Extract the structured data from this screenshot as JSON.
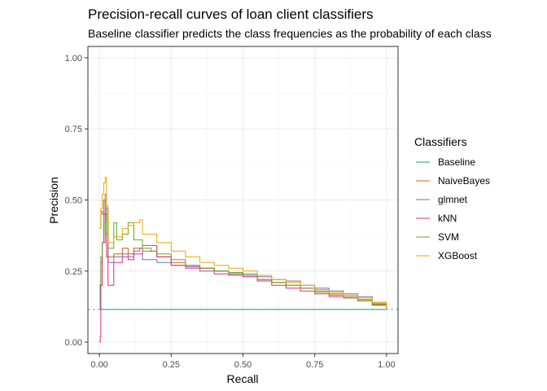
{
  "colors": {
    "Baseline": "#1b9e77",
    "NaiveBayes": "#d95f02",
    "glmnet": "#7570b3",
    "kNN": "#e7298a",
    "SVM": "#66a61e",
    "XGBoost": "#e6ab02",
    "reference_line": "#999999"
  },
  "chart_data": {
    "type": "line",
    "title": "Precision-recall curves of loan client classifiers",
    "subtitle": "Baseline classifier predicts the class frequencies as the probability of each class",
    "xlabel": "Recall",
    "ylabel": "Precision",
    "xlim": [
      -0.04,
      1.04
    ],
    "ylim": [
      -0.04,
      1.04
    ],
    "x_ticks": [
      0.0,
      0.25,
      0.5,
      0.75,
      1.0
    ],
    "x_tick_labels": [
      "0.00",
      "0.25",
      "0.50",
      "0.75",
      "1.00"
    ],
    "y_ticks": [
      0.0,
      0.25,
      0.5,
      0.75,
      1.0
    ],
    "y_tick_labels": [
      "0.00",
      "0.25",
      "0.50",
      "0.75",
      "1.00"
    ],
    "grid": true,
    "reference_line": {
      "y": 0.115,
      "style": "dashed"
    },
    "legend": {
      "title": "Classifiers",
      "placement": "right"
    },
    "series": [
      {
        "name": "Baseline",
        "x": [
          0.0,
          0.003,
          0.01,
          1.0
        ],
        "y": [
          0.2,
          0.115,
          0.115,
          0.115
        ]
      },
      {
        "name": "NaiveBayes",
        "x": [
          0.0,
          0.005,
          0.01,
          0.015,
          0.02,
          0.025,
          0.03,
          0.05,
          0.08,
          0.1,
          0.12,
          0.15,
          0.2,
          0.25,
          0.3,
          0.35,
          0.4,
          0.45,
          0.5,
          0.55,
          0.6,
          0.65,
          0.7,
          0.75,
          0.8,
          0.85,
          0.9,
          0.95,
          1.0
        ],
        "y": [
          0.4,
          0.46,
          0.45,
          0.5,
          0.43,
          0.47,
          0.3,
          0.31,
          0.33,
          0.31,
          0.33,
          0.32,
          0.3,
          0.28,
          0.27,
          0.26,
          0.25,
          0.24,
          0.235,
          0.22,
          0.21,
          0.2,
          0.19,
          0.18,
          0.17,
          0.16,
          0.15,
          0.135,
          0.118
        ]
      },
      {
        "name": "glmnet",
        "x": [
          0.0,
          0.005,
          0.01,
          0.015,
          0.02,
          0.025,
          0.03,
          0.05,
          0.08,
          0.1,
          0.12,
          0.14,
          0.15,
          0.2,
          0.25,
          0.3,
          0.35,
          0.4,
          0.45,
          0.5,
          0.55,
          0.6,
          0.65,
          0.7,
          0.75,
          0.8,
          0.85,
          0.9,
          0.95,
          1.0
        ],
        "y": [
          0.2,
          0.28,
          0.35,
          0.45,
          0.52,
          0.38,
          0.28,
          0.3,
          0.31,
          0.3,
          0.32,
          0.33,
          0.29,
          0.28,
          0.27,
          0.265,
          0.26,
          0.25,
          0.24,
          0.235,
          0.23,
          0.22,
          0.215,
          0.2,
          0.19,
          0.18,
          0.17,
          0.16,
          0.14,
          0.118
        ]
      },
      {
        "name": "kNN",
        "x": [
          0.0,
          0.003,
          0.005,
          0.01,
          0.02,
          0.025,
          0.03,
          0.05,
          0.08,
          0.1,
          0.12,
          0.15,
          0.2,
          0.25,
          0.3,
          0.35,
          0.4,
          0.45,
          0.5,
          0.55,
          0.6,
          0.65,
          0.7,
          0.75,
          0.8,
          0.85,
          0.9,
          0.95,
          1.0
        ],
        "y": [
          0.0,
          0.02,
          0.2,
          0.35,
          0.45,
          0.3,
          0.2,
          0.28,
          0.3,
          0.29,
          0.31,
          0.34,
          0.3,
          0.27,
          0.26,
          0.25,
          0.24,
          0.235,
          0.23,
          0.215,
          0.2,
          0.19,
          0.18,
          0.17,
          0.16,
          0.155,
          0.145,
          0.13,
          0.118
        ]
      },
      {
        "name": "SVM",
        "x": [
          0.0,
          0.005,
          0.01,
          0.015,
          0.02,
          0.025,
          0.03,
          0.05,
          0.06,
          0.08,
          0.1,
          0.12,
          0.15,
          0.18,
          0.2,
          0.25,
          0.3,
          0.35,
          0.4,
          0.45,
          0.5,
          0.55,
          0.6,
          0.65,
          0.7,
          0.75,
          0.8,
          0.85,
          0.9,
          0.95,
          1.0
        ],
        "y": [
          0.2,
          0.3,
          0.35,
          0.42,
          0.38,
          0.45,
          0.33,
          0.42,
          0.36,
          0.38,
          0.42,
          0.36,
          0.33,
          0.32,
          0.31,
          0.29,
          0.27,
          0.26,
          0.25,
          0.245,
          0.24,
          0.22,
          0.21,
          0.2,
          0.19,
          0.175,
          0.165,
          0.155,
          0.145,
          0.132,
          0.118
        ]
      },
      {
        "name": "XGBoost",
        "x": [
          0.0,
          0.005,
          0.01,
          0.015,
          0.02,
          0.025,
          0.03,
          0.05,
          0.08,
          0.1,
          0.12,
          0.14,
          0.15,
          0.2,
          0.25,
          0.3,
          0.35,
          0.4,
          0.45,
          0.5,
          0.55,
          0.6,
          0.65,
          0.7,
          0.75,
          0.8,
          0.85,
          0.9,
          0.95,
          1.0
        ],
        "y": [
          0.4,
          0.47,
          0.52,
          0.56,
          0.58,
          0.48,
          0.35,
          0.37,
          0.4,
          0.41,
          0.42,
          0.43,
          0.38,
          0.35,
          0.32,
          0.3,
          0.28,
          0.27,
          0.26,
          0.25,
          0.235,
          0.22,
          0.21,
          0.2,
          0.185,
          0.175,
          0.165,
          0.155,
          0.14,
          0.12
        ]
      }
    ]
  }
}
